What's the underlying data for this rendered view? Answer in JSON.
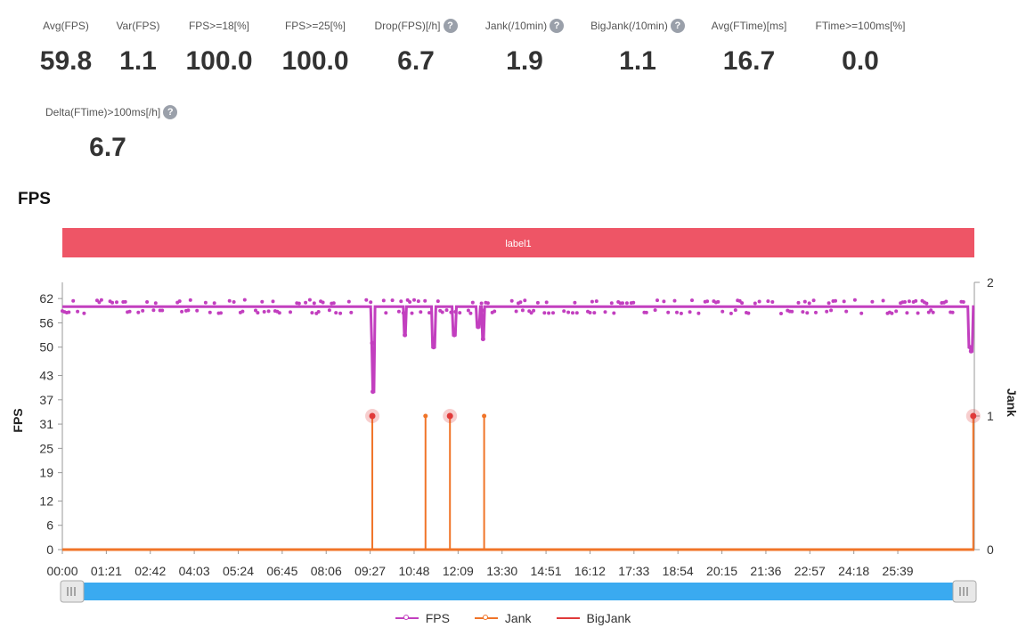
{
  "metrics": [
    {
      "label": "Avg(FPS)",
      "value": "59.8",
      "help": false
    },
    {
      "label": "Var(FPS)",
      "value": "1.1",
      "help": false
    },
    {
      "label": "FPS>=18[%]",
      "value": "100.0",
      "help": false
    },
    {
      "label": "FPS>=25[%]",
      "value": "100.0",
      "help": false
    },
    {
      "label": "Drop(FPS)[/h]",
      "value": "6.7",
      "help": true
    },
    {
      "label": "Jank(/10min)",
      "value": "1.9",
      "help": true
    },
    {
      "label": "BigJank(/10min)",
      "value": "1.1",
      "help": true
    },
    {
      "label": "Avg(FTime)[ms]",
      "value": "16.7",
      "help": false
    },
    {
      "label": "FTime>=100ms[%]",
      "value": "0.0",
      "help": false
    },
    {
      "label": "Delta(FTime)>100ms[/h]",
      "value": "6.7",
      "help": true
    }
  ],
  "help_glyph": "?",
  "section_title": "FPS",
  "chart_data": {
    "type": "line",
    "band_label": "label1",
    "xlabel": "",
    "ylabel": "FPS",
    "y2label": "Jank",
    "x_ticks": [
      "00:00",
      "01:21",
      "02:42",
      "04:03",
      "05:24",
      "06:45",
      "08:06",
      "09:27",
      "10:48",
      "12:09",
      "13:30",
      "14:51",
      "16:12",
      "17:33",
      "18:54",
      "20:15",
      "21:36",
      "22:57",
      "24:18",
      "25:39"
    ],
    "x_range_seconds": [
      0,
      1680
    ],
    "y_ticks": [
      0,
      6,
      12,
      19,
      25,
      31,
      37,
      43,
      50,
      56,
      62
    ],
    "ylim": [
      0,
      66
    ],
    "y2_ticks": [
      0,
      1,
      2
    ],
    "y2lim": [
      0,
      2
    ],
    "fps_baseline": 60,
    "fps_dips": [
      {
        "t": 571,
        "fps": 51
      },
      {
        "t": 572,
        "fps": 39
      },
      {
        "t": 631,
        "fps": 53
      },
      {
        "t": 684,
        "fps": 50
      },
      {
        "t": 722,
        "fps": 53
      },
      {
        "t": 766,
        "fps": 55
      },
      {
        "t": 775,
        "fps": 52
      },
      {
        "t": 1672,
        "fps": 50
      },
      {
        "t": 1674,
        "fps": 49
      }
    ],
    "series": [
      {
        "name": "FPS",
        "color": "#c23fbf"
      },
      {
        "name": "Jank",
        "color": "#f07428",
        "events": [
          571,
          669,
          714,
          777,
          1678
        ],
        "value": 1
      },
      {
        "name": "BigJank",
        "color": "#e03a3a",
        "events": [
          571,
          714,
          1678
        ],
        "value": 1
      }
    ],
    "band_color": "#ee5566",
    "zoom_bar_color": "#3aaaf0",
    "grid": false,
    "legend_position": "bottom"
  }
}
